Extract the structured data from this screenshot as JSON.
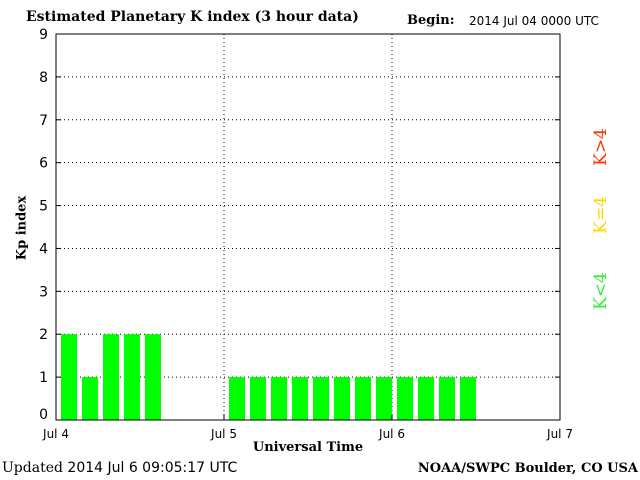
{
  "title": "Estimated Planetary K index (3 hour data)",
  "begin_label": "Begin:",
  "begin_value": "2014 Jul 04 0000 UTC",
  "updated_label": "Updated",
  "updated_value": "2014 Jul  6 09:05:17 UTC",
  "agency": "NOAA/SWPC Boulder, CO USA",
  "legend": [
    {
      "label": "K>4",
      "color": "#ff3300"
    },
    {
      "label": "K=4",
      "color": "#ffd700"
    },
    {
      "label": "K<4",
      "color": "#33ee33"
    }
  ],
  "chart_data": {
    "type": "bar",
    "xlabel": "Universal Time",
    "ylabel": "Kp index",
    "ylim": [
      0,
      9
    ],
    "yticks": [
      "0",
      "1",
      "2",
      "3",
      "4",
      "5",
      "6",
      "7",
      "8",
      "9"
    ],
    "xticks": [
      "Jul 4",
      "Jul 5",
      "Jul 6",
      "Jul 7"
    ],
    "grid": "dotted",
    "bar_color": "#00ff00",
    "interval_hours": 3,
    "values": [
      2,
      1,
      2,
      2,
      2,
      null,
      null,
      null,
      1,
      1,
      1,
      1,
      1,
      1,
      1,
      1,
      1,
      1,
      1,
      1,
      null,
      null,
      null,
      null
    ]
  }
}
